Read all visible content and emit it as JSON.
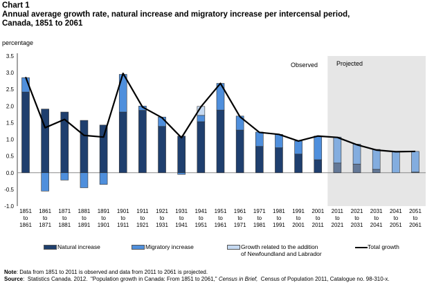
{
  "header": {
    "chart_label": "Chart 1",
    "title_line1": "Annual average growth rate, natural increase and migratory increase per intercensal period,",
    "title_line2": "Canada, 1851 to 2061"
  },
  "chart_data": {
    "type": "bar",
    "stacked": true,
    "ylabel": "percentage",
    "ylim": [
      -1.0,
      3.5
    ],
    "yticks": [
      "-1.0",
      "-0.5",
      "0.0",
      "0.5",
      "1.0",
      "1.5",
      "2.0",
      "2.5",
      "3.0",
      "3.5"
    ],
    "categories": [
      [
        "1851",
        "to",
        "1861"
      ],
      [
        "1861",
        "to",
        "1871"
      ],
      [
        "1871",
        "to",
        "1881"
      ],
      [
        "1881",
        "to",
        "1891"
      ],
      [
        "1891",
        "to",
        "1901"
      ],
      [
        "1901",
        "to",
        "1911"
      ],
      [
        "1911",
        "to",
        "1921"
      ],
      [
        "1921",
        "to",
        "1931"
      ],
      [
        "1931",
        "to",
        "1941"
      ],
      [
        "1941",
        "to",
        "1951"
      ],
      [
        "1951",
        "to",
        "1961"
      ],
      [
        "1961",
        "to",
        "1971"
      ],
      [
        "1971",
        "to",
        "1981"
      ],
      [
        "1981",
        "to",
        "1991"
      ],
      [
        "1991",
        "to",
        "2001"
      ],
      [
        "2001",
        "to",
        "2011"
      ],
      [
        "2011",
        "to",
        "2021"
      ],
      [
        "2021",
        "to",
        "2031"
      ],
      [
        "2031",
        "to",
        "2041"
      ],
      [
        "2041",
        "to",
        "2051"
      ],
      [
        "2051",
        "to",
        "2061"
      ]
    ],
    "series": [
      {
        "name": "Natural increase",
        "type": "bar",
        "color": "#1f3f6e",
        "values": [
          2.42,
          1.91,
          1.82,
          1.57,
          1.43,
          1.82,
          1.87,
          1.39,
          1.1,
          1.53,
          1.88,
          1.28,
          0.79,
          0.75,
          0.56,
          0.39,
          0.29,
          0.26,
          0.1,
          0.0,
          0.02
        ]
      },
      {
        "name": "Migratory increase",
        "type": "bar",
        "color": "#4f8fdc",
        "values": [
          0.43,
          -0.55,
          -0.22,
          -0.45,
          -0.35,
          1.13,
          0.13,
          0.28,
          -0.05,
          0.19,
          0.8,
          0.42,
          0.43,
          0.4,
          0.39,
          0.71,
          0.78,
          0.6,
          0.6,
          0.63,
          0.62
        ]
      },
      {
        "name": "Growth related to the addition of Newfoundland and Labrador",
        "type": "bar",
        "color": "#c5d9f1",
        "values": [
          0,
          0,
          0,
          0,
          0,
          0,
          0,
          0,
          0,
          0.27,
          0,
          0,
          0,
          0,
          0,
          0,
          0,
          0,
          0,
          0,
          0
        ]
      },
      {
        "name": "Total growth",
        "type": "line",
        "color": "#000000",
        "values": [
          2.87,
          1.35,
          1.6,
          1.12,
          1.07,
          2.98,
          1.97,
          1.65,
          1.05,
          1.98,
          2.68,
          1.68,
          1.21,
          1.15,
          0.95,
          1.1,
          1.06,
          0.84,
          0.68,
          0.63,
          0.64
        ]
      }
    ],
    "regions": [
      {
        "label": "Observed",
        "from": "1851 to 1861",
        "to": "2001 to 2011"
      },
      {
        "label": "Projected",
        "from": "2011 to 2021",
        "to": "2051 to 2061",
        "shade": "#e6e6e6"
      }
    ],
    "grid": false,
    "legend": "bottom",
    "legend_labels": {
      "natural": "Natural increase",
      "migratory": "Migratory increase",
      "nl1": "Growth related to the addition",
      "nl2": "of Newfoundland and Labrador",
      "total": "Total growth"
    }
  },
  "footer": {
    "note_label": "Note",
    "note": ": Data  from 1851  to 2011  is observed and data from 2011 to 2061  is projected.",
    "source_label": "Source",
    "source_a": ":  Statistics Canada. 2012.  \"Population growth in Canada: From 1851 to 2061,\" ",
    "source_italic": "Census in Brief,",
    "source_b": "  Census of Population 2011, Catalogue no. 98-310-x."
  }
}
